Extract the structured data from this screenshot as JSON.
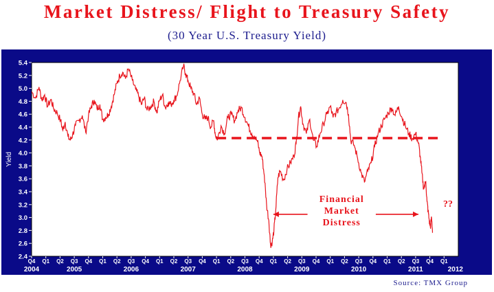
{
  "title": "Market Distress/ Flight to Treasury Safety",
  "subtitle": "(30 Year U.S. Treasury Yield)",
  "source": "Source: TMX Group",
  "colors": {
    "panel": "#0a0a88",
    "series": "#e8141c",
    "title": "#e8141c",
    "subtitle": "#1a1a8c"
  },
  "chart_data": {
    "type": "line",
    "title": "Market Distress/ Flight to Treasury Safety",
    "subtitle": "(30 Year U.S. Treasury Yield)",
    "xlabel": "",
    "ylabel": "Yield",
    "ylim": [
      2.4,
      5.4
    ],
    "xlim": [
      2004.75,
      2012.25
    ],
    "y_ticks": [
      "2.4",
      "2.6",
      "2.8",
      "3.0",
      "3.2",
      "3.4",
      "3.6",
      "3.8",
      "4.0",
      "4.2",
      "4.4",
      "4.6",
      "4.8",
      "5.0",
      "5.2",
      "5.4"
    ],
    "x_ticks": [
      {
        "q": "Q4",
        "x": 2004.75
      },
      {
        "q": "Q1",
        "x": 2005.0
      },
      {
        "q": "Q2",
        "x": 2005.25
      },
      {
        "q": "Q3",
        "x": 2005.5
      },
      {
        "q": "Q4",
        "x": 2005.75
      },
      {
        "q": "Q1",
        "x": 2006.0
      },
      {
        "q": "Q2",
        "x": 2006.25
      },
      {
        "q": "Q3",
        "x": 2006.5
      },
      {
        "q": "Q4",
        "x": 2006.75
      },
      {
        "q": "Q1",
        "x": 2007.0
      },
      {
        "q": "Q2",
        "x": 2007.25
      },
      {
        "q": "Q3",
        "x": 2007.5
      },
      {
        "q": "Q4",
        "x": 2007.75
      },
      {
        "q": "Q1",
        "x": 2008.0
      },
      {
        "q": "Q2",
        "x": 2008.25
      },
      {
        "q": "Q3",
        "x": 2008.5
      },
      {
        "q": "Q4",
        "x": 2008.75
      },
      {
        "q": "Q1",
        "x": 2009.0
      },
      {
        "q": "Q2",
        "x": 2009.25
      },
      {
        "q": "Q3",
        "x": 2009.5
      },
      {
        "q": "Q4",
        "x": 2009.75
      },
      {
        "q": "Q1",
        "x": 2010.0
      },
      {
        "q": "Q2",
        "x": 2010.25
      },
      {
        "q": "Q3",
        "x": 2010.5
      },
      {
        "q": "Q4",
        "x": 2010.75
      },
      {
        "q": "Q1",
        "x": 2011.0
      },
      {
        "q": "Q2",
        "x": 2011.25
      },
      {
        "q": "Q3",
        "x": 2011.5
      },
      {
        "q": "Q4",
        "x": 2011.75
      },
      {
        "q": "Q1",
        "x": 2012.0
      }
    ],
    "year_labels": [
      {
        "label": "2004",
        "x": 2004.75
      },
      {
        "label": "2005",
        "x": 2005.5
      },
      {
        "label": "2006",
        "x": 2006.5
      },
      {
        "label": "2007",
        "x": 2007.5
      },
      {
        "label": "2008",
        "x": 2008.5
      },
      {
        "label": "2009",
        "x": 2009.5
      },
      {
        "label": "2010",
        "x": 2010.5
      },
      {
        "label": "2011",
        "x": 2011.5
      },
      {
        "label": "2012",
        "x": 2012.2
      }
    ],
    "series": [
      {
        "values": [
          [
            2004.75,
            4.95
          ],
          [
            2004.82,
            4.85
          ],
          [
            2004.88,
            5.02
          ],
          [
            2004.93,
            4.82
          ],
          [
            2004.98,
            4.9
          ],
          [
            2005.03,
            4.72
          ],
          [
            2005.09,
            4.83
          ],
          [
            2005.14,
            4.68
          ],
          [
            2005.2,
            4.62
          ],
          [
            2005.26,
            4.5
          ],
          [
            2005.3,
            4.35
          ],
          [
            2005.34,
            4.48
          ],
          [
            2005.39,
            4.25
          ],
          [
            2005.43,
            4.2
          ],
          [
            2005.47,
            4.28
          ],
          [
            2005.52,
            4.42
          ],
          [
            2005.58,
            4.5
          ],
          [
            2005.64,
            4.58
          ],
          [
            2005.7,
            4.32
          ],
          [
            2005.75,
            4.58
          ],
          [
            2005.8,
            4.72
          ],
          [
            2005.85,
            4.82
          ],
          [
            2005.9,
            4.68
          ],
          [
            2005.95,
            4.75
          ],
          [
            2006.0,
            4.52
          ],
          [
            2006.05,
            4.55
          ],
          [
            2006.1,
            4.6
          ],
          [
            2006.15,
            4.72
          ],
          [
            2006.2,
            4.9
          ],
          [
            2006.25,
            5.08
          ],
          [
            2006.3,
            5.2
          ],
          [
            2006.35,
            5.25
          ],
          [
            2006.4,
            5.15
          ],
          [
            2006.45,
            5.3
          ],
          [
            2006.52,
            5.12
          ],
          [
            2006.58,
            4.98
          ],
          [
            2006.63,
            4.88
          ],
          [
            2006.68,
            4.75
          ],
          [
            2006.73,
            4.85
          ],
          [
            2006.78,
            4.66
          ],
          [
            2006.85,
            4.72
          ],
          [
            2006.9,
            4.8
          ],
          [
            2006.95,
            4.62
          ],
          [
            2007.0,
            4.82
          ],
          [
            2007.05,
            4.9
          ],
          [
            2007.1,
            4.7
          ],
          [
            2007.15,
            4.78
          ],
          [
            2007.2,
            4.75
          ],
          [
            2007.25,
            4.82
          ],
          [
            2007.3,
            4.88
          ],
          [
            2007.36,
            5.12
          ],
          [
            2007.42,
            5.35
          ],
          [
            2007.46,
            5.22
          ],
          [
            2007.5,
            5.12
          ],
          [
            2007.55,
            5.0
          ],
          [
            2007.6,
            4.92
          ],
          [
            2007.65,
            4.75
          ],
          [
            2007.7,
            4.85
          ],
          [
            2007.75,
            4.6
          ],
          [
            2007.8,
            4.52
          ],
          [
            2007.85,
            4.55
          ],
          [
            2007.9,
            4.4
          ],
          [
            2007.95,
            4.5
          ],
          [
            2007.98,
            4.28
          ],
          [
            2008.02,
            4.22
          ],
          [
            2008.08,
            4.42
          ],
          [
            2008.14,
            4.3
          ],
          [
            2008.2,
            4.55
          ],
          [
            2008.26,
            4.6
          ],
          [
            2008.32,
            4.5
          ],
          [
            2008.38,
            4.66
          ],
          [
            2008.44,
            4.7
          ],
          [
            2008.5,
            4.55
          ],
          [
            2008.56,
            4.42
          ],
          [
            2008.62,
            4.3
          ],
          [
            2008.67,
            4.25
          ],
          [
            2008.72,
            4.18
          ],
          [
            2008.76,
            4.0
          ],
          [
            2008.8,
            3.95
          ],
          [
            2008.84,
            3.65
          ],
          [
            2008.88,
            3.2
          ],
          [
            2008.92,
            2.95
          ],
          [
            2008.95,
            2.58
          ],
          [
            2008.98,
            2.62
          ],
          [
            2009.01,
            2.8
          ],
          [
            2009.04,
            3.1
          ],
          [
            2009.08,
            3.62
          ],
          [
            2009.12,
            3.72
          ],
          [
            2009.18,
            3.58
          ],
          [
            2009.24,
            3.75
          ],
          [
            2009.3,
            3.85
          ],
          [
            2009.36,
            3.95
          ],
          [
            2009.4,
            4.15
          ],
          [
            2009.44,
            4.55
          ],
          [
            2009.48,
            4.72
          ],
          [
            2009.52,
            4.45
          ],
          [
            2009.58,
            4.3
          ],
          [
            2009.64,
            4.52
          ],
          [
            2009.7,
            4.2
          ],
          [
            2009.76,
            4.1
          ],
          [
            2009.82,
            4.3
          ],
          [
            2009.88,
            4.45
          ],
          [
            2009.94,
            4.6
          ],
          [
            2010.0,
            4.72
          ],
          [
            2010.05,
            4.55
          ],
          [
            2010.1,
            4.62
          ],
          [
            2010.16,
            4.7
          ],
          [
            2010.22,
            4.82
          ],
          [
            2010.28,
            4.78
          ],
          [
            2010.32,
            4.6
          ],
          [
            2010.36,
            4.2
          ],
          [
            2010.42,
            4.12
          ],
          [
            2010.48,
            3.92
          ],
          [
            2010.54,
            3.7
          ],
          [
            2010.6,
            3.55
          ],
          [
            2010.66,
            3.72
          ],
          [
            2010.72,
            3.85
          ],
          [
            2010.78,
            4.1
          ],
          [
            2010.84,
            4.3
          ],
          [
            2010.9,
            4.42
          ],
          [
            2010.95,
            4.52
          ],
          [
            2011.02,
            4.62
          ],
          [
            2011.08,
            4.7
          ],
          [
            2011.14,
            4.58
          ],
          [
            2011.2,
            4.72
          ],
          [
            2011.26,
            4.55
          ],
          [
            2011.32,
            4.42
          ],
          [
            2011.38,
            4.3
          ],
          [
            2011.44,
            4.22
          ],
          [
            2011.5,
            4.3
          ],
          [
            2011.55,
            4.15
          ],
          [
            2011.58,
            3.95
          ],
          [
            2011.61,
            3.7
          ],
          [
            2011.64,
            3.45
          ],
          [
            2011.68,
            3.55
          ],
          [
            2011.7,
            3.25
          ],
          [
            2011.72,
            3.1
          ],
          [
            2011.74,
            2.95
          ],
          [
            2011.76,
            2.85
          ],
          [
            2011.78,
            3.0
          ],
          [
            2011.8,
            2.77
          ]
        ]
      }
    ],
    "reference_line": {
      "y": 4.23,
      "x_range": [
        2008.0,
        2011.95
      ]
    },
    "annotations": {
      "text_lines": [
        "Financial",
        "Market",
        "Distress"
      ],
      "question": "??",
      "arrow_left_x": [
        2009.0,
        2009.6
      ],
      "arrow_right_x": [
        2010.8,
        2011.55
      ],
      "y": 3.05
    },
    "grid": false,
    "legend": "none"
  }
}
